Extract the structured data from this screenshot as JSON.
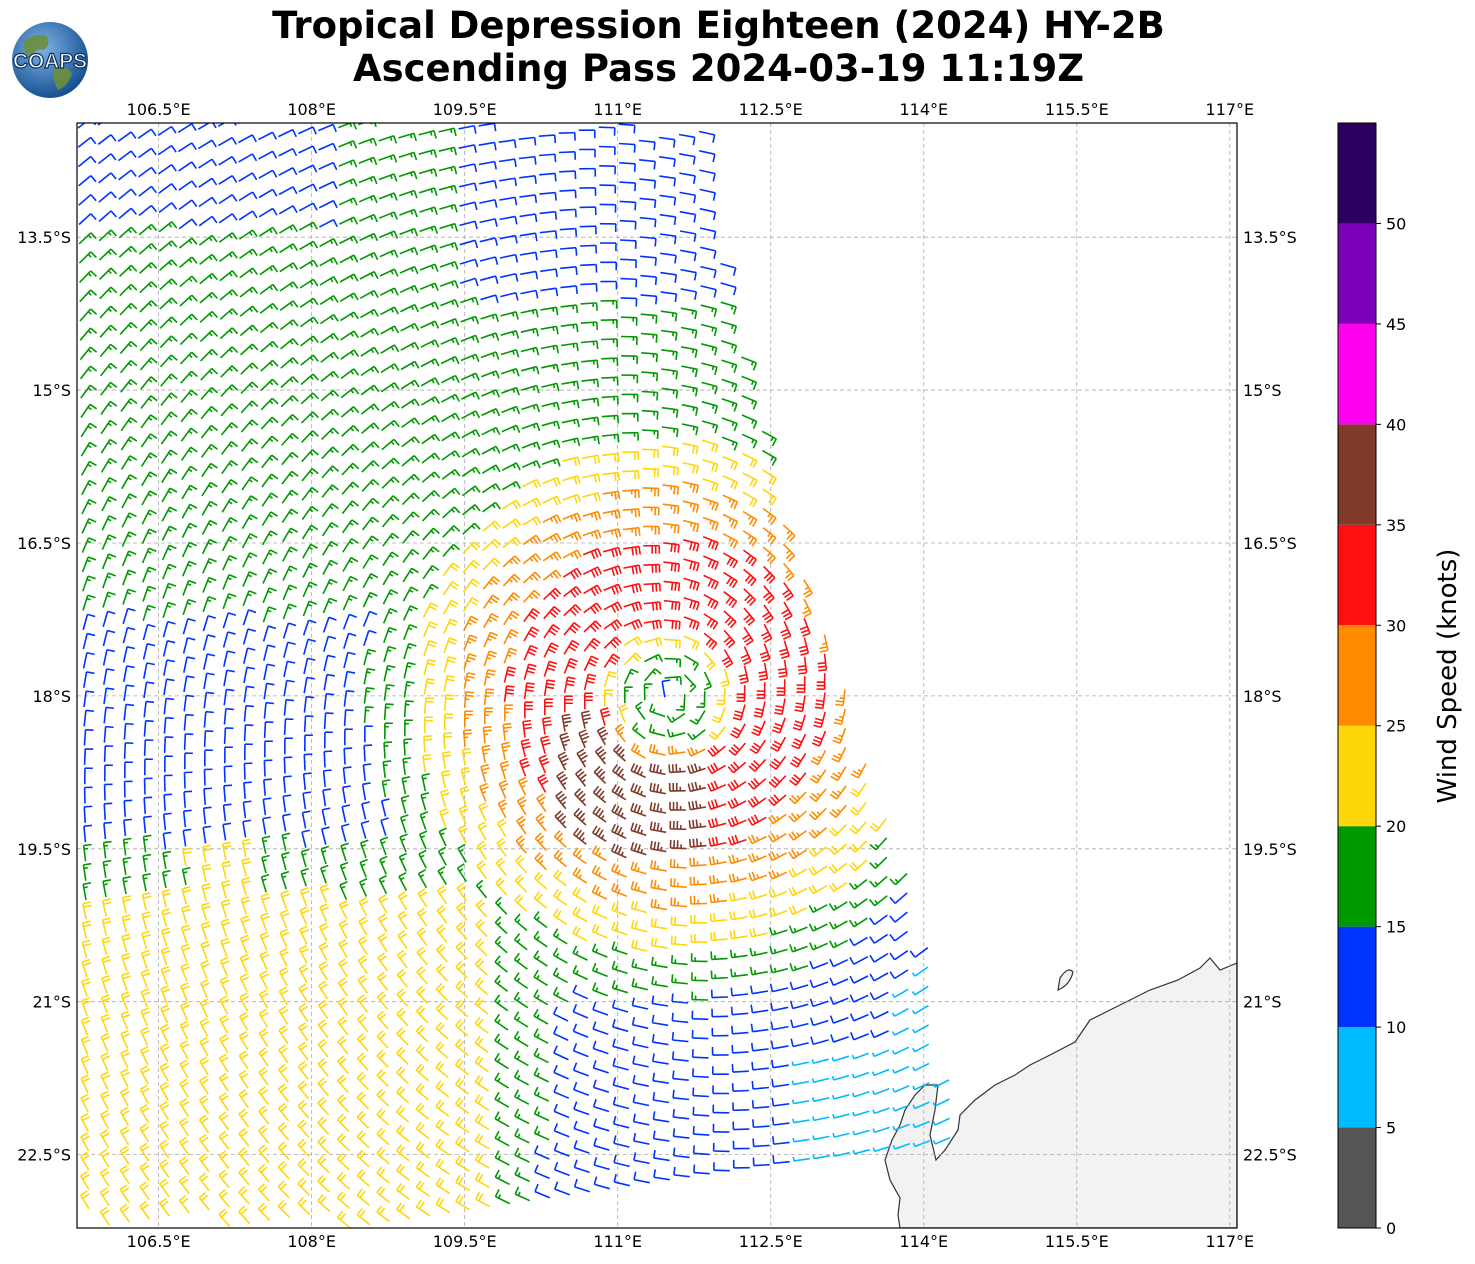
{
  "title": {
    "line1": "Tropical Depression Eighteen (2024) HY-2B",
    "line2": "Ascending Pass 2024-03-19 11:19Z"
  },
  "logo": {
    "text": "COAPS",
    "globe_color": "#1a5fa8",
    "land_color": "#6b8f3a"
  },
  "map": {
    "lon_labels": [
      "106.5°E",
      "108°E",
      "109.5°E",
      "111°E",
      "112.5°E",
      "114°E",
      "115.5°E",
      "117°E"
    ],
    "lat_labels": [
      "13.5°S",
      "15°S",
      "16.5°S",
      "18°S",
      "19.5°S",
      "21°S",
      "22.5°S"
    ],
    "gridline_style": "dashed",
    "coastline_color": "#333333",
    "land_color": "#f2f2f2"
  },
  "colorbar": {
    "label": "Wind Speed (knots)",
    "ticks": [
      "0",
      "5",
      "10",
      "15",
      "20",
      "25",
      "30",
      "35",
      "40",
      "45",
      "50"
    ],
    "bins": [
      {
        "min": 0,
        "max": 5,
        "color": "#555555"
      },
      {
        "min": 5,
        "max": 10,
        "color": "#00bbff"
      },
      {
        "min": 10,
        "max": 15,
        "color": "#0033ff"
      },
      {
        "min": 15,
        "max": 20,
        "color": "#009900"
      },
      {
        "min": 20,
        "max": 25,
        "color": "#ffd60a"
      },
      {
        "min": 25,
        "max": 30,
        "color": "#ff8c00"
      },
      {
        "min": 30,
        "max": 35,
        "color": "#ff1010"
      },
      {
        "min": 35,
        "max": 40,
        "color": "#7f3a2a"
      },
      {
        "min": 40,
        "max": 45,
        "color": "#ff00ee"
      },
      {
        "min": 45,
        "max": 50,
        "color": "#7d00b8"
      },
      {
        "min": 50,
        "max": 55,
        "color": "#2b005e"
      }
    ]
  },
  "storm_center": {
    "lon": 111.5,
    "lat": -18.0
  }
}
